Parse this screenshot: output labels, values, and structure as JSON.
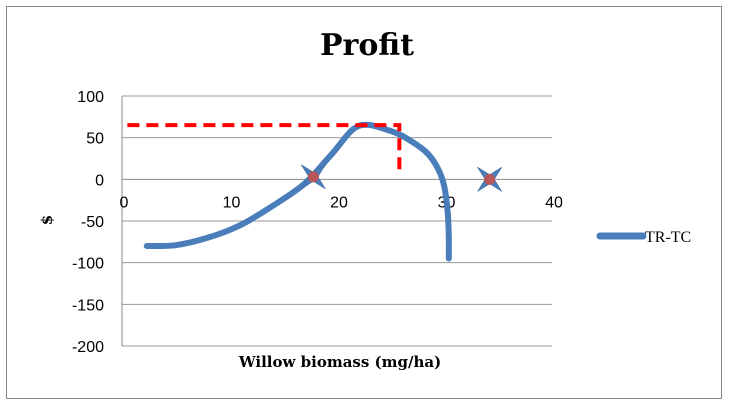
{
  "chart_data": {
    "type": "line",
    "title": "Profit",
    "xlabel": "Willow biomass (mg/ha)",
    "ylabel": "$",
    "xlim": [
      0,
      40
    ],
    "ylim": [
      -200,
      100
    ],
    "x_ticks": [
      0,
      10,
      20,
      30,
      40
    ],
    "y_ticks": [
      100,
      50,
      0,
      -50,
      -100,
      -150,
      -200
    ],
    "grid": "horizontal",
    "legend_position": "right",
    "series": [
      {
        "name": "TR-TC",
        "color": "#4a7ebb",
        "points": [
          [
            2.3,
            -80
          ],
          [
            5,
            -79
          ],
          [
            8,
            -70
          ],
          [
            11,
            -55
          ],
          [
            14,
            -32
          ],
          [
            17,
            -5
          ],
          [
            19.5,
            30
          ],
          [
            22,
            64
          ],
          [
            25,
            58
          ],
          [
            27,
            45
          ],
          [
            28.5,
            30
          ],
          [
            29.5,
            10
          ],
          [
            30,
            -10
          ],
          [
            30.3,
            -40
          ],
          [
            30.4,
            -70
          ],
          [
            30.4,
            -95
          ]
        ]
      }
    ],
    "annotations": {
      "dashed_line": {
        "color": "#ff0000",
        "points": [
          [
            0.5,
            65
          ],
          [
            25.8,
            65
          ],
          [
            25.8,
            10
          ]
        ]
      },
      "star_markers": [
        {
          "x": 17.8,
          "y": 3,
          "icon": "star-marker-icon"
        },
        {
          "x": 34.2,
          "y": 0,
          "icon": "star-marker-icon"
        }
      ]
    }
  }
}
